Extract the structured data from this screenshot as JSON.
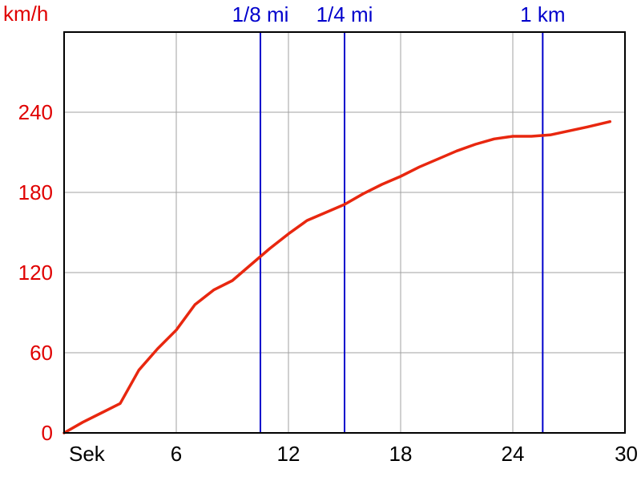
{
  "chart_data": {
    "type": "line",
    "ylabel": "km/h",
    "xlabel": "Sek",
    "xlim": [
      0,
      30
    ],
    "ylim": [
      0,
      300
    ],
    "x_ticks": [
      6,
      12,
      18,
      24,
      30
    ],
    "y_ticks": [
      0,
      60,
      120,
      180,
      240
    ],
    "grid": true,
    "colors": {
      "line": "#e8270f",
      "axis_text": "#e00000",
      "markers": "#0000cc",
      "grid": "#a0a0a0",
      "frame": "#000000"
    },
    "markers": [
      {
        "label": "1/8 mi",
        "x": 10.5
      },
      {
        "label": "1/4 mi",
        "x": 15.0
      },
      {
        "label": "1 km",
        "x": 25.6
      }
    ],
    "series": [
      {
        "x": [
          0,
          1,
          2,
          3,
          4,
          5,
          6,
          7,
          8,
          9,
          10,
          11,
          12,
          13,
          14,
          15,
          16,
          17,
          18,
          19,
          20,
          21,
          22,
          23,
          24,
          25,
          26,
          27,
          28,
          29.2
        ],
        "y": [
          0,
          8,
          15,
          22,
          47,
          63,
          77,
          96,
          107,
          114,
          126,
          138,
          149,
          159,
          165,
          171,
          179,
          186,
          192,
          199,
          205,
          211,
          216,
          220,
          222,
          222,
          223,
          226,
          229,
          233
        ]
      }
    ]
  }
}
